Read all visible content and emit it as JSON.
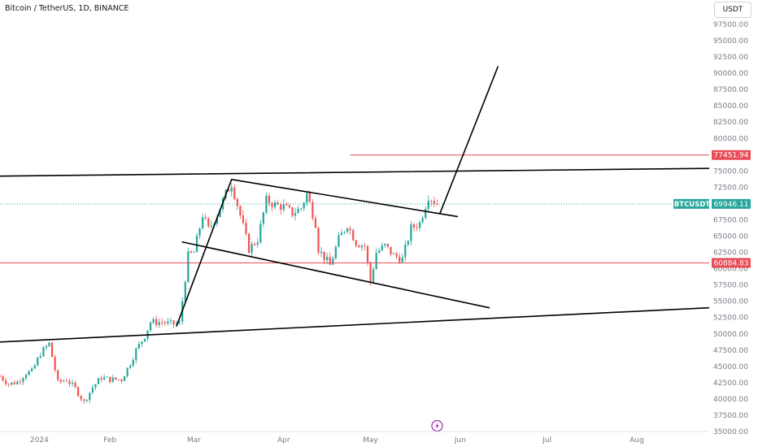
{
  "header": {
    "symbol_title": "Bitcoin / TetherUS, 1D, BINANCE",
    "currency_button": "USDT"
  },
  "colors": {
    "up": "#26a69a",
    "down": "#ef5350",
    "level": "#e84d57",
    "trendline": "#000000",
    "current_price": "#26a69a",
    "event_icon": "#9c27b0"
  },
  "icons": {
    "event_marker": "lightning-icon"
  },
  "chart_data": {
    "type": "candlestick",
    "title": "Bitcoin / TetherUS, 1D, BINANCE",
    "ylim": [
      35000,
      100000
    ],
    "y_ticks": [
      "35000.00",
      "37500.00",
      "40000.00",
      "42500.00",
      "45000.00",
      "47500.00",
      "50000.00",
      "52500.00",
      "55000.00",
      "57500.00",
      "60000.00",
      "62500.00",
      "65000.00",
      "67500.00",
      "70000.00",
      "72500.00",
      "75000.00",
      "77500.00",
      "80000.00",
      "82500.00",
      "85000.00",
      "87500.00",
      "90000.00",
      "92500.00",
      "95000.00",
      "97500.00"
    ],
    "x_ticks": [
      {
        "label": "2024",
        "date": "2024-01-01"
      },
      {
        "label": "Feb",
        "date": "2024-02-01"
      },
      {
        "label": "Mar",
        "date": "2024-03-01"
      },
      {
        "label": "Apr",
        "date": "2024-04-01"
      },
      {
        "label": "May",
        "date": "2024-05-01"
      },
      {
        "label": "Jun",
        "date": "2024-06-01"
      },
      {
        "label": "Jul",
        "date": "2024-07-01"
      },
      {
        "label": "Aug",
        "date": "2024-08-01"
      }
    ],
    "x_start": "2023-12-25",
    "x_end": "2024-08-26",
    "grid": false,
    "close_path": [
      [
        "2023-12-25",
        43500
      ],
      [
        "2023-12-28",
        42300
      ],
      [
        "2023-12-31",
        42600
      ],
      [
        "2024-01-03",
        44000
      ],
      [
        "2024-01-05",
        44200
      ],
      [
        "2024-01-08",
        47000
      ],
      [
        "2024-01-11",
        48500
      ],
      [
        "2024-01-14",
        42500
      ],
      [
        "2024-01-17",
        43000
      ],
      [
        "2024-01-20",
        41600
      ],
      [
        "2024-01-23",
        39500
      ],
      [
        "2024-01-26",
        41800
      ],
      [
        "2024-01-29",
        43300
      ],
      [
        "2024-02-01",
        43000
      ],
      [
        "2024-02-05",
        43000
      ],
      [
        "2024-02-08",
        45500
      ],
      [
        "2024-02-10",
        47500
      ],
      [
        "2024-02-13",
        49700
      ],
      [
        "2024-02-15",
        51800
      ],
      [
        "2024-02-19",
        51800
      ],
      [
        "2024-02-22",
        51500
      ],
      [
        "2024-02-25",
        51600
      ],
      [
        "2024-02-28",
        62000
      ],
      [
        "2024-03-01",
        62500
      ],
      [
        "2024-03-04",
        68300
      ],
      [
        "2024-03-06",
        66000
      ],
      [
        "2024-03-09",
        68300
      ],
      [
        "2024-03-12",
        71500
      ],
      [
        "2024-03-14",
        73100
      ],
      [
        "2024-03-17",
        68200
      ],
      [
        "2024-03-20",
        63000
      ],
      [
        "2024-03-23",
        64500
      ],
      [
        "2024-03-26",
        70500
      ],
      [
        "2024-03-29",
        69800
      ],
      [
        "2024-04-01",
        69500
      ],
      [
        "2024-04-04",
        68500
      ],
      [
        "2024-04-07",
        69300
      ],
      [
        "2024-04-09",
        71500
      ],
      [
        "2024-04-12",
        67000
      ],
      [
        "2024-04-13",
        63000
      ],
      [
        "2024-04-17",
        60500
      ],
      [
        "2024-04-20",
        64500
      ],
      [
        "2024-04-23",
        66800
      ],
      [
        "2024-04-26",
        64000
      ],
      [
        "2024-04-29",
        63500
      ],
      [
        "2024-05-01",
        58000
      ],
      [
        "2024-05-03",
        62500
      ],
      [
        "2024-05-06",
        63500
      ],
      [
        "2024-05-09",
        62000
      ],
      [
        "2024-05-12",
        61500
      ],
      [
        "2024-05-15",
        66200
      ],
      [
        "2024-05-18",
        67000
      ],
      [
        "2024-05-21",
        71200
      ],
      [
        "2024-05-24",
        69946
      ]
    ],
    "current_price": {
      "symbol": "BTCUSDT",
      "value": "69946.11",
      "y": 69946.11
    },
    "horizontal_levels": [
      {
        "label": "77451.94",
        "y": 77451.94,
        "x_from": "2024-04-24"
      },
      {
        "label": "60884.83",
        "y": 60884.83,
        "x_from": "2023-12-25"
      }
    ],
    "trendlines": [
      {
        "name": "upper-channel",
        "points": [
          [
            "2023-12-23",
            74200
          ],
          [
            "2024-08-26",
            75400
          ]
        ]
      },
      {
        "name": "lower-channel",
        "points": [
          [
            "2023-12-23",
            48700
          ],
          [
            "2024-08-26",
            54000
          ]
        ]
      },
      {
        "name": "flag-top",
        "points": [
          [
            "2024-03-14",
            73700
          ],
          [
            "2024-05-31",
            68000
          ]
        ]
      },
      {
        "name": "flag-bottom",
        "points": [
          [
            "2024-02-26",
            64100
          ],
          [
            "2024-06-11",
            54000
          ]
        ]
      },
      {
        "name": "flagpole",
        "points": [
          [
            "2024-02-24",
            51200
          ],
          [
            "2024-03-14",
            73700
          ]
        ]
      },
      {
        "name": "projection",
        "points": [
          [
            "2024-05-25",
            68500
          ],
          [
            "2024-06-14",
            91000
          ]
        ]
      }
    ],
    "event_marker": {
      "date": "2024-05-24"
    }
  }
}
